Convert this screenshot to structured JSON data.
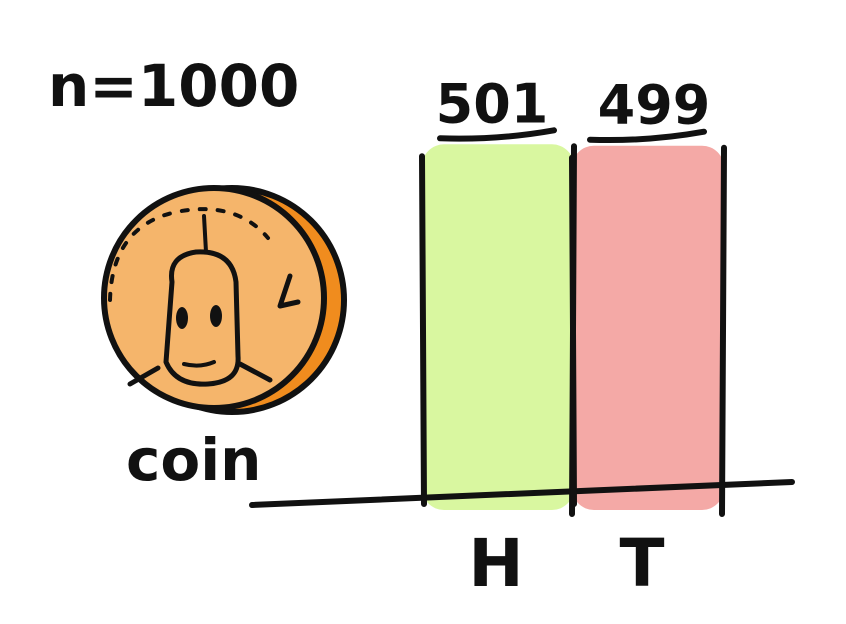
{
  "sample": {
    "label": "n=1000"
  },
  "coin": {
    "label": "coin",
    "fill_color": "#f5b56b",
    "rim_color": "#f08c1e"
  },
  "chart_data": {
    "type": "bar",
    "categories": [
      "H",
      "T"
    ],
    "values": [
      501,
      499
    ],
    "data_labels": [
      "501",
      "499"
    ],
    "colors": [
      "#d9f7a0",
      "#f4a9a6"
    ],
    "title": "",
    "xlabel": "",
    "ylabel": "",
    "ylim": [
      0,
      600
    ],
    "grid": false,
    "legend": "none"
  }
}
